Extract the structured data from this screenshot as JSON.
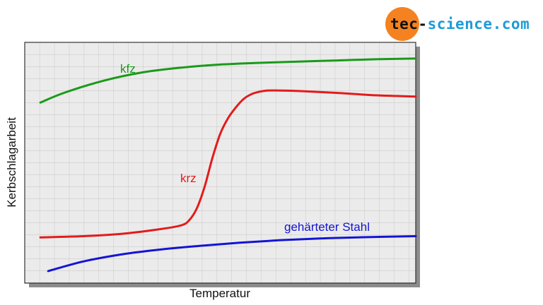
{
  "logo": {
    "text_part1": "tec-",
    "text_part2": "science.com",
    "colors": {
      "circle": "#f58220",
      "dark": "#111111",
      "accent": "#1e9bd7"
    }
  },
  "chart_data": {
    "type": "line",
    "title": "",
    "xlabel": "Temperatur",
    "ylabel": "Kerbschlagarbeit",
    "xlim": [
      0,
      100
    ],
    "ylim": [
      0,
      100
    ],
    "grid": true,
    "legend": "none",
    "series": [
      {
        "name": "kfz",
        "color": "#1a9a1a",
        "x": [
          4,
          10,
          20,
          30,
          40,
          50,
          60,
          70,
          80,
          90,
          100
        ],
        "y": [
          75,
          79,
          84,
          87.5,
          89.5,
          90.8,
          91.5,
          92,
          92.5,
          93,
          93.3
        ]
      },
      {
        "name": "krz",
        "color": "#e31b1b",
        "x": [
          4,
          15,
          25,
          35,
          40,
          42,
          44,
          46,
          48,
          50,
          52,
          54,
          56,
          58,
          60,
          62,
          65,
          70,
          80,
          90,
          100
        ],
        "y": [
          19,
          19.5,
          20.5,
          22.5,
          24,
          26,
          31,
          40,
          52,
          62,
          68.5,
          73,
          76.5,
          78.5,
          79.5,
          80,
          80,
          79.8,
          79,
          78,
          77.5
        ]
      },
      {
        "name": "gehärteter Stahl",
        "color": "#1414d4",
        "x": [
          6,
          15,
          25,
          35,
          45,
          55,
          65,
          75,
          85,
          100
        ],
        "y": [
          5,
          9,
          12,
          14,
          15.5,
          16.8,
          17.8,
          18.5,
          19,
          19.5
        ]
      }
    ],
    "annotations": [
      {
        "text": "kfz",
        "series": 0,
        "color": "#1a9a1a"
      },
      {
        "text": "krz",
        "series": 1,
        "color": "#e31b1b"
      },
      {
        "text": "gehärteter Stahl",
        "series": 2,
        "color": "#1414d4"
      }
    ]
  }
}
